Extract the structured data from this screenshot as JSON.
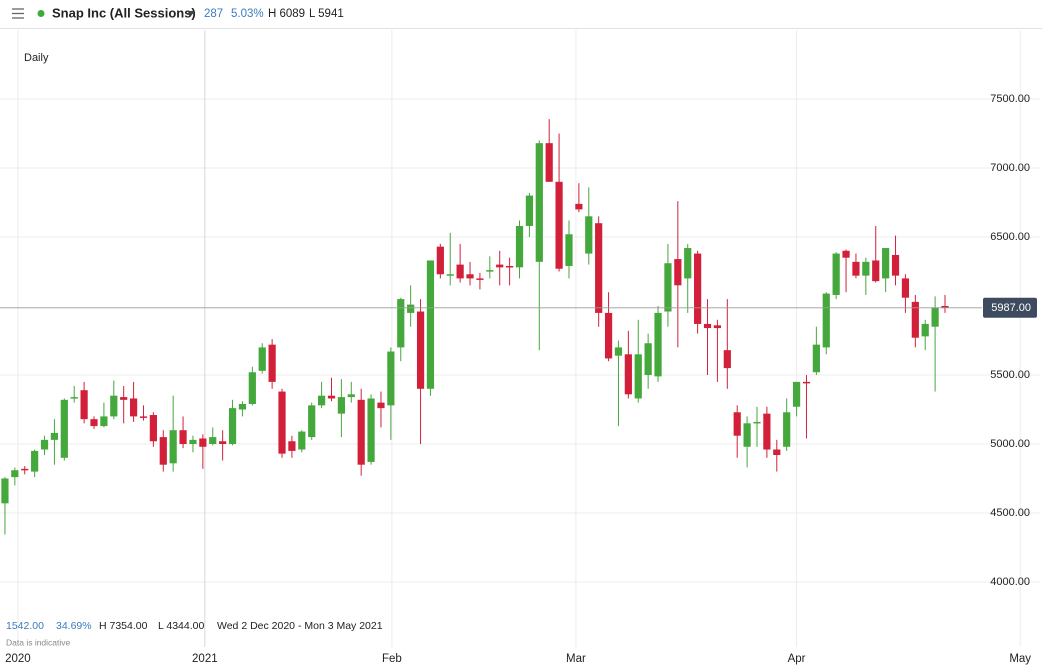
{
  "header": {
    "title": "Snap Inc (All Sessions)",
    "change": "287",
    "change_pct": "5.03%",
    "high": "H 6089",
    "low": "L 5941"
  },
  "footer": {
    "change": "1542.00",
    "change_pct": "34.69%",
    "high": "H 7354.00",
    "low": "L 4344.00",
    "range": "Wed 2 Dec 2020 - Mon 3 May 2021",
    "note": "Data is indicative"
  },
  "chart_data": {
    "type": "candlestick",
    "subtitle": "Daily",
    "up_color": "#45a83d",
    "down_color": "#d3203a",
    "grid": true,
    "last_price": {
      "value": 5987,
      "label": "5987.00"
    },
    "ylim": [
      3550,
      8000
    ],
    "yticks": [
      {
        "value": 4000,
        "label": "4000.00"
      },
      {
        "value": 4500,
        "label": "4500.00"
      },
      {
        "value": 5000,
        "label": "5000.00"
      },
      {
        "value": 5500,
        "label": "5500.00"
      },
      {
        "value": 6500,
        "label": "6500.00"
      },
      {
        "value": 7000,
        "label": "7000.00"
      },
      {
        "value": 7500,
        "label": "7500.00"
      }
    ],
    "xlim": [
      -0.5,
      104.6
    ],
    "xticks": [
      {
        "value": 1.31,
        "label": "2020"
      },
      {
        "value": 20.2,
        "label": "2021"
      },
      {
        "value": 39.1,
        "label": "Feb"
      },
      {
        "value": 57.7,
        "label": "Mar"
      },
      {
        "value": 80.0,
        "label": "Apr"
      },
      {
        "value": 102.6,
        "label": "May"
      }
    ],
    "open": [
      4570,
      4760,
      4820,
      4800,
      4960,
      5030,
      4900,
      5330,
      5390,
      5180,
      5130,
      5200,
      5340,
      5330,
      5200,
      5210,
      5050,
      4860,
      5100,
      5000,
      5040,
      5000,
      5020,
      5000,
      5250,
      5290,
      5530,
      5720,
      5380,
      5020,
      4960,
      5050,
      5280,
      5350,
      5220,
      5340,
      5320,
      4870,
      5300,
      5280,
      5700,
      5950,
      5960,
      5400,
      6430,
      6230,
      6300,
      6230,
      6200,
      6250,
      6300,
      6290,
      6280,
      6580,
      6320,
      7180,
      6900,
      6290,
      6740,
      6380,
      6600,
      5950,
      5640,
      5650,
      5330,
      5500,
      5490,
      5960,
      6340,
      6200,
      6380,
      5870,
      5860,
      5680,
      5230,
      4980,
      5150,
      5220,
      4960,
      4980,
      5270,
      5450,
      5520,
      5700,
      6080,
      6400,
      6320,
      6220,
      6330,
      6200,
      6370,
      6200,
      6030,
      5780,
      5850,
      6000
    ],
    "high": [
      4760,
      4830,
      4840,
      4960,
      5060,
      5180,
      5330,
      5420,
      5450,
      5200,
      5300,
      5460,
      5420,
      5450,
      5280,
      5230,
      5100,
      5350,
      5200,
      5060,
      5070,
      5120,
      5100,
      5320,
      5310,
      5560,
      5730,
      5760,
      5400,
      5060,
      5100,
      5300,
      5450,
      5480,
      5470,
      5450,
      5400,
      5360,
      5380,
      5700,
      6060,
      6150,
      6050,
      6330,
      6450,
      6530,
      6450,
      6320,
      6240,
      6360,
      6400,
      6350,
      6620,
      6820,
      7200,
      7354,
      7250,
      6620,
      6890,
      6860,
      6650,
      6100,
      5750,
      5820,
      5900,
      5800,
      6000,
      6450,
      6760,
      6450,
      6400,
      6050,
      5900,
      6050,
      5280,
      5200,
      5270,
      5270,
      5030,
      5330,
      5450,
      5500,
      5850,
      6100,
      6390,
      6410,
      6380,
      6350,
      6580,
      6420,
      6510,
      6230,
      6080,
      5900,
      6070,
      6080
    ],
    "low": [
      4344,
      4700,
      4780,
      4760,
      4920,
      4850,
      4880,
      5300,
      5150,
      5110,
      5120,
      5180,
      5150,
      5160,
      5170,
      4980,
      4800,
      4800,
      4970,
      4940,
      4820,
      4990,
      4880,
      4990,
      5200,
      5280,
      5510,
      5400,
      4900,
      4900,
      4940,
      5030,
      5260,
      5310,
      5050,
      5300,
      4770,
      4850,
      5120,
      5030,
      5600,
      5850,
      5000,
      5350,
      6200,
      6150,
      6170,
      6150,
      6120,
      6200,
      6150,
      6150,
      6200,
      6500,
      5680,
      6900,
      6250,
      6200,
      6680,
      6300,
      5850,
      5600,
      5130,
      5330,
      5300,
      5400,
      5450,
      5850,
      5700,
      5950,
      5800,
      5500,
      5450,
      5400,
      4900,
      4830,
      4980,
      4900,
      4800,
      4950,
      5200,
      5040,
      5500,
      5650,
      6050,
      6100,
      6200,
      6080,
      6170,
      6100,
      6150,
      5950,
      5700,
      5680,
      5380,
      5950
    ],
    "close": [
      4750,
      4810,
      4810,
      4950,
      5030,
      5080,
      5320,
      5340,
      5180,
      5130,
      5200,
      5350,
      5320,
      5200,
      5190,
      5020,
      4850,
      5100,
      5000,
      5030,
      4980,
      5050,
      5000,
      5260,
      5290,
      5520,
      5700,
      5450,
      4930,
      4950,
      5090,
      5280,
      5350,
      5330,
      5340,
      5360,
      4850,
      5330,
      5260,
      5670,
      6050,
      6010,
      5400,
      6330,
      6230,
      6230,
      6200,
      6200,
      6190,
      6260,
      6280,
      6280,
      6580,
      6800,
      7180,
      6900,
      6270,
      6520,
      6700,
      6650,
      5950,
      5620,
      5700,
      5360,
      5650,
      5730,
      5950,
      6310,
      6150,
      6420,
      5870,
      5840,
      5840,
      5550,
      5060,
      5150,
      5160,
      4960,
      4920,
      5230,
      5450,
      5440,
      5720,
      6090,
      6380,
      6350,
      6220,
      6320,
      6180,
      6420,
      6220,
      6060,
      5770,
      5870,
      5990,
      5990
    ]
  }
}
